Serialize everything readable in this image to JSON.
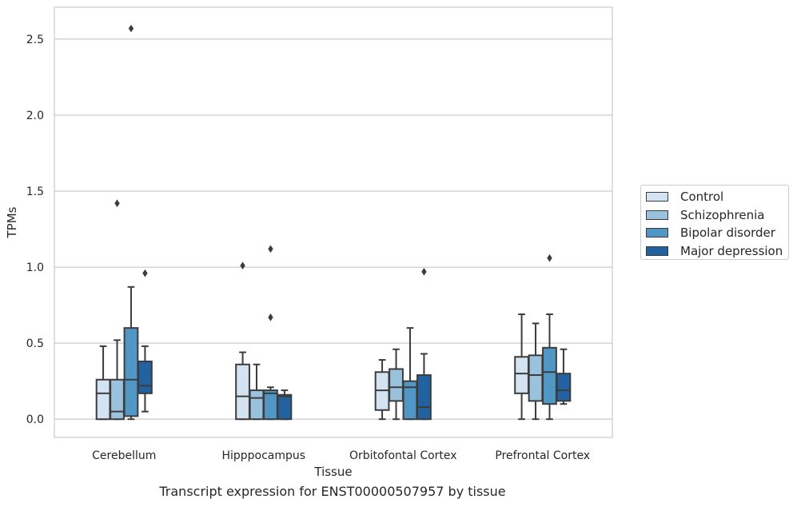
{
  "caption": "Transcript expression for ENST00000507957 by tissue",
  "chart_data": {
    "type": "box",
    "xlabel": "Tissue",
    "ylabel": "TPMs",
    "ylim": [
      -0.12,
      2.71
    ],
    "yticks": [
      0.0,
      0.5,
      1.0,
      1.5,
      2.0,
      2.5
    ],
    "ytick_labels": [
      "0.0",
      "0.5",
      "1.0",
      "1.5",
      "2.0",
      "2.5"
    ],
    "grid": "horizontal",
    "legend_position": "right",
    "categories": [
      "Cerebellum",
      "Hipppocampus",
      "Orbitofontal Cortex",
      "Prefrontal Cortex"
    ],
    "series": [
      {
        "name": "Control",
        "color": "#d4e3f2",
        "boxes": [
          {
            "whislo": 0.0,
            "q1": 0.0,
            "med": 0.17,
            "q3": 0.26,
            "whishi": 0.48,
            "fliers": []
          },
          {
            "whislo": 0.0,
            "q1": 0.0,
            "med": 0.15,
            "q3": 0.36,
            "whishi": 0.44,
            "fliers": [
              1.01
            ]
          },
          {
            "whislo": 0.0,
            "q1": 0.06,
            "med": 0.19,
            "q3": 0.31,
            "whishi": 0.39,
            "fliers": []
          },
          {
            "whislo": 0.0,
            "q1": 0.17,
            "med": 0.3,
            "q3": 0.41,
            "whishi": 0.69,
            "fliers": []
          }
        ]
      },
      {
        "name": "Schizophrenia",
        "color": "#9ac2dc",
        "boxes": [
          {
            "whislo": 0.0,
            "q1": 0.0,
            "med": 0.05,
            "q3": 0.26,
            "whishi": 0.52,
            "fliers": [
              1.42
            ]
          },
          {
            "whislo": 0.0,
            "q1": 0.0,
            "med": 0.14,
            "q3": 0.19,
            "whishi": 0.36,
            "fliers": []
          },
          {
            "whislo": 0.0,
            "q1": 0.12,
            "med": 0.21,
            "q3": 0.33,
            "whishi": 0.46,
            "fliers": []
          },
          {
            "whislo": 0.0,
            "q1": 0.12,
            "med": 0.29,
            "q3": 0.42,
            "whishi": 0.63,
            "fliers": []
          }
        ]
      },
      {
        "name": "Bipolar disorder",
        "color": "#5197c5",
        "boxes": [
          {
            "whislo": 0.0,
            "q1": 0.02,
            "med": 0.26,
            "q3": 0.6,
            "whishi": 0.87,
            "fliers": [
              2.57
            ]
          },
          {
            "whislo": 0.0,
            "q1": 0.0,
            "med": 0.17,
            "q3": 0.19,
            "whishi": 0.21,
            "fliers": [
              0.67,
              1.12
            ]
          },
          {
            "whislo": 0.0,
            "q1": 0.0,
            "med": 0.21,
            "q3": 0.25,
            "whishi": 0.6,
            "fliers": []
          },
          {
            "whislo": 0.0,
            "q1": 0.1,
            "med": 0.31,
            "q3": 0.47,
            "whishi": 0.69,
            "fliers": [
              1.06
            ]
          }
        ]
      },
      {
        "name": "Major depression",
        "color": "#2362a0",
        "boxes": [
          {
            "whislo": 0.05,
            "q1": 0.17,
            "med": 0.22,
            "q3": 0.38,
            "whishi": 0.48,
            "fliers": [
              0.96
            ]
          },
          {
            "whislo": 0.0,
            "q1": 0.0,
            "med": 0.15,
            "q3": 0.16,
            "whishi": 0.19,
            "fliers": []
          },
          {
            "whislo": 0.0,
            "q1": 0.0,
            "med": 0.08,
            "q3": 0.29,
            "whishi": 0.43,
            "fliers": [
              0.97
            ]
          },
          {
            "whislo": 0.1,
            "q1": 0.12,
            "med": 0.19,
            "q3": 0.3,
            "whishi": 0.46,
            "fliers": []
          }
        ]
      }
    ]
  }
}
